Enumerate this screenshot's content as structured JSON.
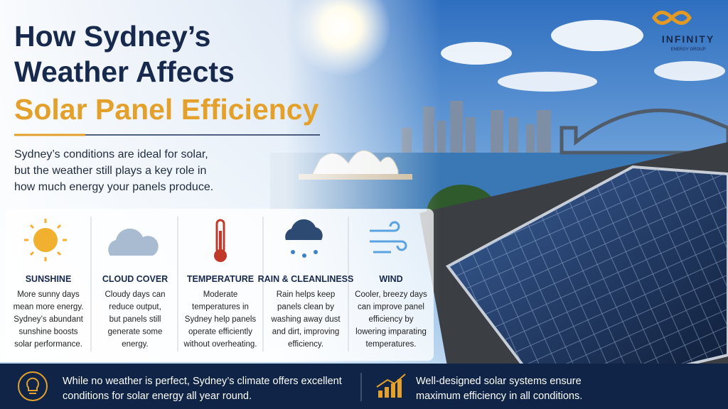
{
  "header": {
    "title_lines": [
      "How Sydney’s",
      "Weather Affects",
      "Solar Panel Efficiency"
    ],
    "intro_lines": [
      "Sydney’s conditions are ideal for solar,",
      "but the weather still plays a key role in",
      "how much energy your panels produce."
    ]
  },
  "logo": {
    "name": "INFINITY",
    "tagline": "ENERGY GROUP"
  },
  "factors": [
    {
      "title": "SUNSHINE",
      "lines": [
        "More sunny days",
        "mean more energy.",
        "Sydney’s abundant",
        "sunshine boosts",
        "solar performance."
      ]
    },
    {
      "title": "CLOUD COVER",
      "lines": [
        "Cloudy days can",
        "reduce output,",
        "but panels still",
        "generate some",
        "energy."
      ]
    },
    {
      "title": "TEMPERATURE",
      "lines": [
        "Moderate",
        "temperatures in",
        "Sydney help panels",
        "operate efficiently",
        "without overheating."
      ]
    },
    {
      "title": "RAIN & CLEANLINESS",
      "lines": [
        "Rain helps keep",
        "panels clean by",
        "washing away dust",
        "and dirt, improving",
        "efficiency."
      ]
    },
    {
      "title": "WIND",
      "lines": [
        "Cooler, breezy days",
        "can improve panel",
        "efficiency by",
        "lowering imparating",
        "temperatures."
      ]
    }
  ],
  "footer": [
    {
      "lines": [
        "While no weather is perfect, Sydney’s climate offers excellent",
        "conditions for solar energy all year round."
      ]
    },
    {
      "lines": [
        "Well-designed solar systems ensure",
        "maximum efficiency in all conditions."
      ]
    }
  ]
}
